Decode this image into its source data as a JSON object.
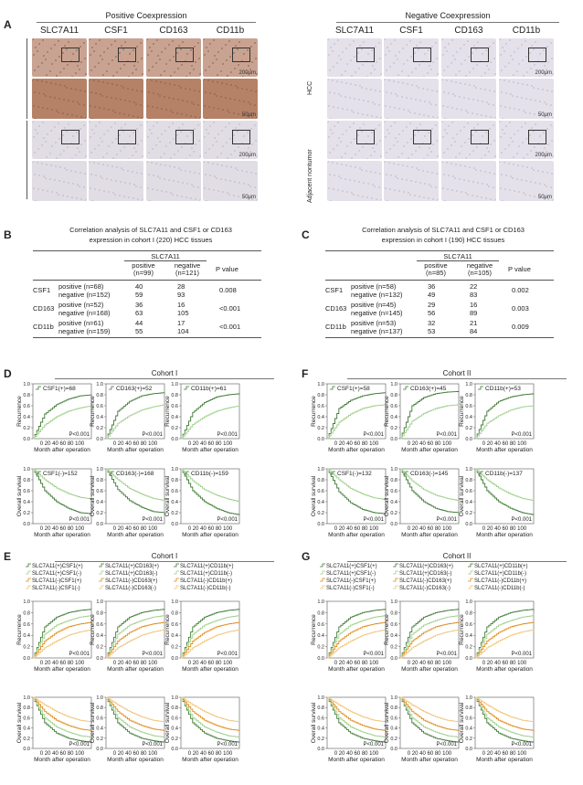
{
  "panelA": {
    "label": "A",
    "pos_header": "Positive Coexpression",
    "neg_header": "Negative Coexpression",
    "markers": [
      "SLC7A11",
      "CSF1",
      "CD163",
      "CD11b"
    ],
    "side_hcc": "HCC",
    "side_adj": "Adjacent nontumor",
    "scale_low": "200μm",
    "scale_high": "50μm",
    "colors": {
      "pos_low": "#c9a391",
      "pos_high": "#b58268",
      "adj": "#e1dde4",
      "neg": "#e4e1ea"
    }
  },
  "panelB": {
    "label": "B",
    "title": [
      "Correlation analysis of SLC7A11 and CSF1 or CD163",
      "expression in cohort I (220) HCC tissues"
    ],
    "gene": "SLC7A11",
    "col_pos": [
      "positive",
      "(n=99)"
    ],
    "col_neg": [
      "negative",
      "(n=121)"
    ],
    "col_p": "P value",
    "groups": [
      {
        "name": "CSF1",
        "rows": [
          {
            "label": "positive (n=68)",
            "pos": "40",
            "neg": "28"
          },
          {
            "label": "negative (n=152)",
            "pos": "59",
            "neg": "93"
          }
        ],
        "p": "0.008"
      },
      {
        "name": "CD163",
        "rows": [
          {
            "label": "positive (n=52)",
            "pos": "36",
            "neg": "16"
          },
          {
            "label": "negative (n=168)",
            "pos": "63",
            "neg": "105"
          }
        ],
        "p": "<0.001"
      },
      {
        "name": "CD11b",
        "rows": [
          {
            "label": "positive (n=61)",
            "pos": "44",
            "neg": "17"
          },
          {
            "label": "negative (n=159)",
            "pos": "55",
            "neg": "104"
          }
        ],
        "p": "<0.001"
      }
    ]
  },
  "panelC": {
    "label": "C",
    "title": [
      "Correlation analysis of SLC7A11 and CSF1 or CD163",
      "expression in cohort I (190) HCC tissues"
    ],
    "gene": "SLC7A11",
    "col_pos": [
      "positive",
      "(n=85)"
    ],
    "col_neg": [
      "negative",
      "(n=105)"
    ],
    "col_p": "P value",
    "groups": [
      {
        "name": "CSF1",
        "rows": [
          {
            "label": "positive (n=58)",
            "pos": "36",
            "neg": "22"
          },
          {
            "label": "negative (n=132)",
            "pos": "49",
            "neg": "83"
          }
        ],
        "p": "0.002"
      },
      {
        "name": "CD163",
        "rows": [
          {
            "label": "positive (n=45)",
            "pos": "29",
            "neg": "16"
          },
          {
            "label": "negative (n=145)",
            "pos": "56",
            "neg": "89"
          }
        ],
        "p": "0.003"
      },
      {
        "name": "CD11b",
        "rows": [
          {
            "label": "positive (n=53)",
            "pos": "32",
            "neg": "21"
          },
          {
            "label": "negative (n=137)",
            "pos": "53",
            "neg": "84"
          }
        ],
        "p": "0.009"
      }
    ]
  },
  "labels": {
    "D": "D",
    "E": "E",
    "F": "F",
    "G": "G",
    "cohort1": "Cohort I",
    "cohort2": "Cohort II"
  },
  "axes": {
    "xlabel": "Month after operation",
    "y_rec": "Recurrence",
    "y_os": "Overall survival",
    "p": "P<0.001",
    "yticks": [
      "0.0",
      "0.2",
      "0.4",
      "0.6",
      "0.8",
      "1.0"
    ],
    "xticks": "0 20 40 60 80 100"
  },
  "colors": {
    "dark": "#3f7a35",
    "light": "#9fcf8b",
    "orange_dark": "#e08a1a",
    "orange_light": "#f0c47a"
  },
  "chart_data": [
    {
      "type": "line",
      "panel": "D",
      "legend": "CSF1(+)=68",
      "series": [
        {
          "name": "",
          "values": [
            0,
            0.45,
            0.62,
            0.72,
            0.78,
            0.8
          ]
        },
        {
          "name": "",
          "values": [
            0,
            0.25,
            0.4,
            0.5,
            0.56,
            0.6
          ]
        }
      ],
      "x": [
        0,
        20,
        40,
        60,
        80,
        100
      ],
      "ylim": [
        0,
        1
      ]
    },
    {
      "type": "line",
      "panel": "D",
      "legend": "CD163(+)=52",
      "series": [
        {
          "name": "",
          "values": [
            0,
            0.5,
            0.68,
            0.78,
            0.82,
            0.84
          ]
        },
        {
          "name": "",
          "values": [
            0,
            0.28,
            0.42,
            0.52,
            0.58,
            0.62
          ]
        }
      ],
      "x": [
        0,
        20,
        40,
        60,
        80,
        100
      ],
      "ylim": [
        0,
        1
      ]
    },
    {
      "type": "line",
      "panel": "D",
      "legend": "CD11b(+)=61",
      "series": [
        {
          "name": "",
          "values": [
            0,
            0.48,
            0.66,
            0.76,
            0.8,
            0.82
          ]
        },
        {
          "name": "",
          "values": [
            0,
            0.26,
            0.4,
            0.5,
            0.56,
            0.6
          ]
        }
      ],
      "x": [
        0,
        20,
        40,
        60,
        80,
        100
      ],
      "ylim": [
        0,
        1
      ]
    },
    {
      "type": "line",
      "panel": "D",
      "legend": "CSF1(-)=152",
      "series": [
        {
          "name": "",
          "values": [
            1,
            0.6,
            0.4,
            0.28,
            0.2,
            0.18
          ]
        },
        {
          "name": "",
          "values": [
            1,
            0.8,
            0.65,
            0.55,
            0.48,
            0.45
          ]
        }
      ],
      "x": [
        0,
        20,
        40,
        60,
        80,
        100
      ],
      "ylim": [
        0,
        1
      ]
    },
    {
      "type": "line",
      "panel": "D",
      "legend": "CD163(-)=168",
      "series": [
        {
          "name": "",
          "values": [
            1,
            0.62,
            0.42,
            0.3,
            0.22,
            0.2
          ]
        },
        {
          "name": "",
          "values": [
            1,
            0.8,
            0.64,
            0.54,
            0.46,
            0.42
          ]
        }
      ],
      "x": [
        0,
        20,
        40,
        60,
        80,
        100
      ],
      "ylim": [
        0,
        1
      ]
    },
    {
      "type": "line",
      "panel": "D",
      "legend": "CD11b(-)=159",
      "series": [
        {
          "name": "",
          "values": [
            1,
            0.6,
            0.4,
            0.28,
            0.2,
            0.16
          ]
        },
        {
          "name": "",
          "values": [
            1,
            0.78,
            0.62,
            0.52,
            0.45,
            0.4
          ]
        }
      ],
      "x": [
        0,
        20,
        40,
        60,
        80,
        100
      ],
      "ylim": [
        0,
        1
      ]
    },
    {
      "type": "line",
      "panel": "F",
      "legend": "CSF1(+)=58",
      "series": [
        {
          "name": "",
          "values": [
            0,
            0.55,
            0.7,
            0.78,
            0.82,
            0.84
          ]
        },
        {
          "name": "",
          "values": [
            0,
            0.3,
            0.45,
            0.55,
            0.6,
            0.62
          ]
        }
      ],
      "x": [
        0,
        20,
        40,
        60,
        80,
        100
      ],
      "ylim": [
        0,
        1
      ]
    },
    {
      "type": "line",
      "panel": "F",
      "legend": "CD163(+)=45",
      "series": [
        {
          "name": "",
          "values": [
            0,
            0.6,
            0.75,
            0.82,
            0.85,
            0.86
          ]
        },
        {
          "name": "",
          "values": [
            0,
            0.32,
            0.46,
            0.55,
            0.6,
            0.62
          ]
        }
      ],
      "x": [
        0,
        20,
        40,
        60,
        80,
        100
      ],
      "ylim": [
        0,
        1
      ]
    },
    {
      "type": "line",
      "panel": "F",
      "legend": "CD11b(+)=53",
      "series": [
        {
          "name": "",
          "values": [
            0,
            0.5,
            0.68,
            0.76,
            0.8,
            0.82
          ]
        },
        {
          "name": "",
          "values": [
            0,
            0.28,
            0.42,
            0.52,
            0.58,
            0.6
          ]
        }
      ],
      "x": [
        0,
        20,
        40,
        60,
        80,
        100
      ],
      "ylim": [
        0,
        1
      ]
    },
    {
      "type": "line",
      "panel": "F",
      "legend": "CSF1(-)=132",
      "series": [
        {
          "name": "",
          "values": [
            1,
            0.58,
            0.38,
            0.26,
            0.2,
            0.18
          ]
        },
        {
          "name": "",
          "values": [
            1,
            0.8,
            0.64,
            0.54,
            0.47,
            0.44
          ]
        }
      ],
      "x": [
        0,
        20,
        40,
        60,
        80,
        100
      ],
      "ylim": [
        0,
        1
      ]
    },
    {
      "type": "line",
      "panel": "F",
      "legend": "CD163(-)=145",
      "series": [
        {
          "name": "",
          "values": [
            1,
            0.6,
            0.4,
            0.28,
            0.22,
            0.2
          ]
        },
        {
          "name": "",
          "values": [
            1,
            0.78,
            0.62,
            0.52,
            0.46,
            0.42
          ]
        }
      ],
      "x": [
        0,
        20,
        40,
        60,
        80,
        100
      ],
      "ylim": [
        0,
        1
      ]
    },
    {
      "type": "line",
      "panel": "F",
      "legend": "CD11b(-)=137",
      "series": [
        {
          "name": "",
          "values": [
            1,
            0.6,
            0.4,
            0.28,
            0.2,
            0.16
          ]
        },
        {
          "name": "",
          "values": [
            1,
            0.8,
            0.65,
            0.54,
            0.46,
            0.42
          ]
        }
      ],
      "x": [
        0,
        20,
        40,
        60,
        80,
        100
      ],
      "ylim": [
        0,
        1
      ]
    }
  ],
  "legendsE": [
    [
      "SLC7A11(+)CSF1(+)",
      "SLC7A11(+)CSF1(-)",
      "SLC7A11(-)CSF1(+)",
      "SLC7A11(-)CSF1(-)"
    ],
    [
      "SLC7A11(+)CD163(+)",
      "SLC7A11(+)CD163(-)",
      "SLC7A11(-)CD163(+)",
      "SLC7A11(-)CD163(-)"
    ],
    [
      "SLC7A11(+)CD11b(+)",
      "SLC7A11(+)CD11b(-)",
      "SLC7A11(-)CD11b(+)",
      "SLC7A11(-)CD11b(-)"
    ]
  ],
  "chart_data_E": {
    "rec": [
      [
        0,
        0.55,
        0.72,
        0.8,
        0.84,
        0.86
      ],
      [
        0,
        0.42,
        0.58,
        0.66,
        0.72,
        0.75
      ],
      [
        0,
        0.3,
        0.45,
        0.55,
        0.6,
        0.63
      ],
      [
        0,
        0.18,
        0.3,
        0.4,
        0.46,
        0.5
      ]
    ],
    "os": [
      [
        1,
        0.5,
        0.3,
        0.2,
        0.15,
        0.12
      ],
      [
        1,
        0.6,
        0.42,
        0.32,
        0.25,
        0.22
      ],
      [
        1,
        0.72,
        0.55,
        0.45,
        0.38,
        0.35
      ],
      [
        1,
        0.85,
        0.72,
        0.62,
        0.55,
        0.52
      ]
    ]
  }
}
